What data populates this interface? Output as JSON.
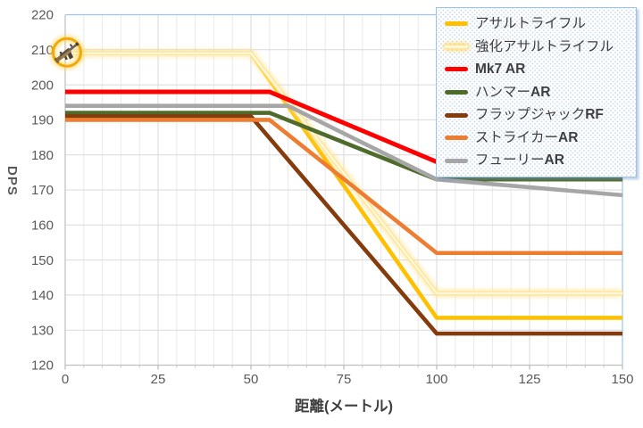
{
  "chart_data": {
    "type": "line",
    "title": "",
    "xlabel": "距離(メートル)",
    "ylabel": "DPS",
    "xlim": [
      0,
      150
    ],
    "ylim": [
      120,
      220
    ],
    "x_ticks": [
      0,
      25,
      50,
      75,
      100,
      125,
      150
    ],
    "x_minor_unit": 5,
    "y_ticks": [
      120,
      130,
      140,
      150,
      160,
      170,
      180,
      190,
      200,
      210,
      220
    ],
    "grid": true,
    "legend_position": "top-right",
    "series": [
      {
        "name": "アサルトライフル",
        "color": "#FFC000",
        "glow": false,
        "points": [
          [
            0,
            209
          ],
          [
            50,
            209
          ],
          [
            100,
            133.5
          ],
          [
            150,
            133.5
          ]
        ]
      },
      {
        "name": "強化アサルトライフル",
        "color": "#FFE699",
        "glow": true,
        "points": [
          [
            0,
            209
          ],
          [
            50,
            209
          ],
          [
            100,
            140.5
          ],
          [
            150,
            140.5
          ]
        ]
      },
      {
        "name": "Mk7 AR",
        "color": "#FF0000",
        "glow": false,
        "points": [
          [
            0,
            198
          ],
          [
            55,
            198
          ],
          [
            100,
            178
          ],
          [
            150,
            178
          ]
        ]
      },
      {
        "name": "ハンマーAR",
        "color": "#4E6B2B",
        "glow": false,
        "points": [
          [
            0,
            192
          ],
          [
            55,
            192
          ],
          [
            100,
            173
          ],
          [
            150,
            173
          ]
        ]
      },
      {
        "name": "フラップジャックRF",
        "color": "#843C0C",
        "glow": false,
        "points": [
          [
            0,
            191
          ],
          [
            50,
            191
          ],
          [
            100,
            129
          ],
          [
            150,
            129
          ]
        ]
      },
      {
        "name": "ストライカーAR",
        "color": "#ED7D31",
        "glow": false,
        "points": [
          [
            0,
            190
          ],
          [
            55,
            190
          ],
          [
            100,
            152
          ],
          [
            150,
            152
          ]
        ]
      },
      {
        "name": "フューリーAR",
        "color": "#A6A6A6",
        "glow": false,
        "points": [
          [
            0,
            194
          ],
          [
            60,
            194
          ],
          [
            100,
            173
          ],
          [
            150,
            168.5
          ]
        ]
      }
    ],
    "annotation": {
      "type": "icon",
      "icon": "assault-rifle",
      "x": 0,
      "y": 209
    }
  },
  "legend": {
    "items": [
      {
        "jp": "アサルトライフル",
        "latin": ""
      },
      {
        "jp": "強化アサルトライフル",
        "latin": ""
      },
      {
        "jp": "",
        "latin": "Mk7 AR"
      },
      {
        "jp": "ハンマー",
        "latin": "AR"
      },
      {
        "jp": "フラップジャック",
        "latin": "RF"
      },
      {
        "jp": "ストライカー",
        "latin": "AR"
      },
      {
        "jp": "フューリー",
        "latin": "AR"
      }
    ]
  },
  "axis_titles": {
    "y": "DPS",
    "x": "距離(メートル)"
  },
  "colors": {
    "plot_border": "#9DC3E6",
    "axis_line": "#BFBFBF",
    "gridline_major": "#D9D9D9",
    "gridline_minor": "#EAEAEA",
    "tick_label": "#595959",
    "legend_text": "#3F3F3F",
    "icon_ring": "#F2A90A",
    "icon_glow": "#FFD34D"
  }
}
